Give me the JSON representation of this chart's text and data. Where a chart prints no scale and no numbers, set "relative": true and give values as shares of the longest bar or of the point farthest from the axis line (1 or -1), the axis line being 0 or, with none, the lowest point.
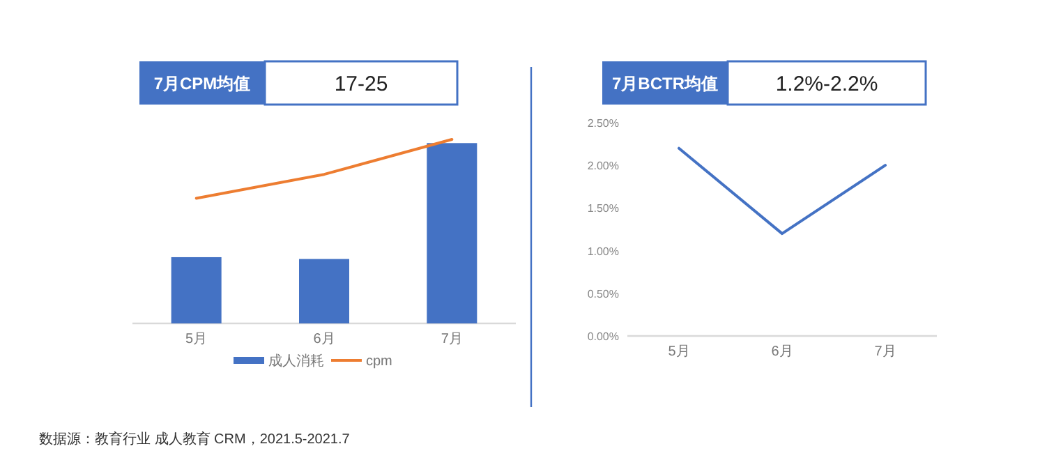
{
  "chart_data": [
    {
      "type": "bar",
      "title": "7月CPM均值",
      "subtitle": "17-25",
      "relative": true,
      "legend": "bottom",
      "categories": [
        "5月",
        "6月",
        "7月"
      ],
      "series": [
        {
          "name": "成人消耗",
          "color": "#4472c4",
          "values": [
            0.36,
            0.35,
            0.98
          ]
        },
        {
          "name": "cpm",
          "type": "line",
          "color": "#ed7d31",
          "values": [
            0.68,
            0.81,
            1
          ]
        }
      ],
      "annotations": [
        "数据源：教育行业 成人教育 CRM，2021.5-2021.7"
      ]
    },
    {
      "type": "line",
      "title": "7月BCTR均值",
      "subtitle": "1.2%-2.2%",
      "categories": [
        "5月",
        "6月",
        "7月"
      ],
      "series": [
        {
          "color": "#4472c4",
          "values": [
            2.2,
            1.2,
            2.0
          ]
        }
      ],
      "ylim": [
        0,
        2.5
      ],
      "yticks": [
        {
          "value": 0,
          "label": "0.00%"
        },
        {
          "value": 0.5,
          "label": "0.50%"
        },
        {
          "value": 1,
          "label": "1.00%"
        },
        {
          "value": 1.5,
          "label": "1.50%"
        },
        {
          "value": 2,
          "label": "2.00%"
        },
        {
          "value": 2.5,
          "label": "2.50%"
        }
      ]
    }
  ]
}
